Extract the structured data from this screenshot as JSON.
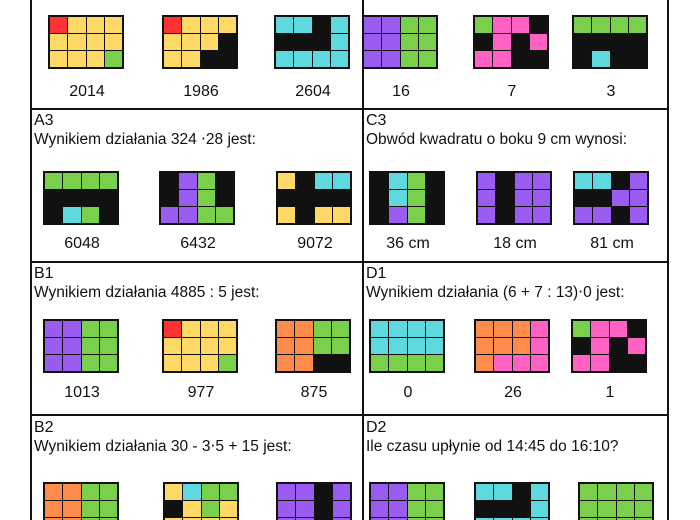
{
  "colors": {
    "y": "#ffd966",
    "r": "#ff3333",
    "g": "#7ad04a",
    "c": "#5fd8e0",
    "p": "#9a5cf0",
    "k": "#111111",
    "m": "#ff62c4",
    "o": "#ff8c4a"
  },
  "cells": [
    {
      "id": "A2",
      "label": "",
      "question": "",
      "options": [
        {
          "answer": "2014",
          "grid": [
            "ryyy",
            "yyyy",
            "yyyg"
          ]
        },
        {
          "answer": "1986",
          "grid": [
            "ryyy",
            "yyyk",
            "yykk"
          ]
        },
        {
          "answer": "2604",
          "grid": [
            "cckc",
            "kkkc",
            "cccc"
          ]
        }
      ]
    },
    {
      "id": "C2",
      "label": "",
      "question": "",
      "options": [
        {
          "answer": "16",
          "grid": [
            "ppgg",
            "ppgg",
            "ppgg"
          ]
        },
        {
          "answer": "7",
          "grid": [
            "gmmk",
            "kmkm",
            "mmkk"
          ]
        },
        {
          "answer": "3",
          "grid": [
            "gggg",
            "kkkk",
            "kckk"
          ]
        }
      ]
    },
    {
      "id": "A3",
      "label": "A3",
      "question": "Wynikiem działania 324 ⋅28 jest:",
      "options": [
        {
          "answer": "6048",
          "grid": [
            "gggg",
            "kkkk",
            "kcgk"
          ]
        },
        {
          "answer": "6432",
          "grid": [
            "kpgk",
            "kpgk",
            "ppgg"
          ]
        },
        {
          "answer": "9072",
          "grid": [
            "ykcc",
            "kkkk",
            "ykyy"
          ]
        }
      ]
    },
    {
      "id": "C3",
      "label": "C3",
      "question": "Obwód kwadratu o boku 9 cm wynosi:",
      "options": [
        {
          "answer": "36 cm",
          "grid": [
            "kcgk",
            "kcgk",
            "kpgk"
          ]
        },
        {
          "answer": "18 cm",
          "grid": [
            "pkpp",
            "pkpp",
            "pkpp"
          ]
        },
        {
          "answer": "81 cm",
          "grid": [
            "cckp",
            "kkpp",
            "ppkp"
          ]
        }
      ]
    },
    {
      "id": "B1",
      "label": "B1",
      "question": "Wynikiem działania 4885 : 5 jest:",
      "options": [
        {
          "answer": "1013",
          "grid": [
            "ppgg",
            "ppgg",
            "ppgg"
          ]
        },
        {
          "answer": "977",
          "grid": [
            "ryyy",
            "yyyy",
            "yyyg"
          ]
        },
        {
          "answer": "875",
          "grid": [
            "oogg",
            "oogg",
            "ookk"
          ]
        }
      ]
    },
    {
      "id": "D1",
      "label": "D1",
      "question": "Wynikiem działania (6 + 7 : 13)⋅0 jest:",
      "options": [
        {
          "answer": "0",
          "grid": [
            "cccc",
            "cccc",
            "gggg"
          ]
        },
        {
          "answer": "26",
          "grid": [
            "ooom",
            "ooom",
            "ommm"
          ]
        },
        {
          "answer": "1",
          "grid": [
            "gmmk",
            "kmkm",
            "mmkk"
          ]
        }
      ]
    },
    {
      "id": "B2",
      "label": "B2",
      "question": "Wynikiem działania 30 - 3⋅5 + 15 jest:",
      "options": [
        {
          "answer": "",
          "grid": [
            "oogg",
            "oogg",
            "oogg"
          ]
        },
        {
          "answer": "",
          "grid": [
            "ycgg",
            "kygy",
            "yyyy"
          ]
        },
        {
          "answer": "",
          "grid": [
            "ppkp",
            "ppkp",
            "ppkp"
          ]
        }
      ]
    },
    {
      "id": "D2",
      "label": "D2",
      "question": "Ile czasu upłynie od 14:45 do 16:10?",
      "options": [
        {
          "answer": "",
          "grid": [
            "ppgg",
            "ppgg",
            "ppgg"
          ]
        },
        {
          "answer": "",
          "grid": [
            "cckc",
            "kkkc",
            "cccc"
          ]
        },
        {
          "answer": "",
          "grid": [
            "gggg",
            "gggg",
            "gggg"
          ]
        }
      ]
    }
  ]
}
